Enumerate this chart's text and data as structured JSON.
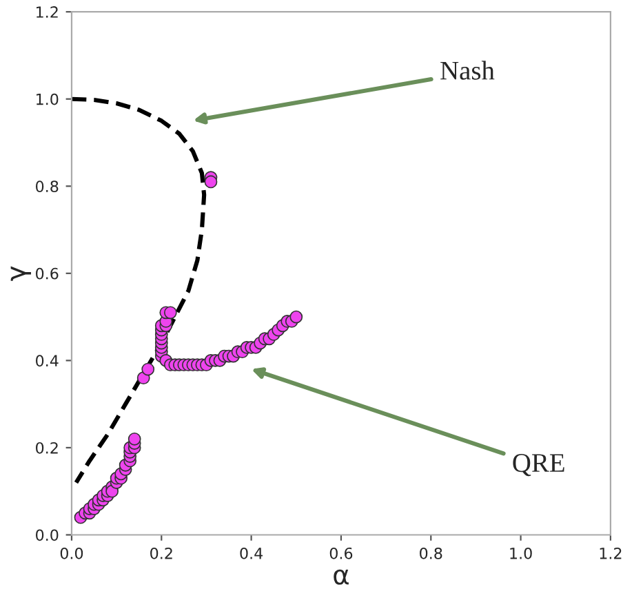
{
  "chart_data": {
    "type": "scatter",
    "xlabel": "α",
    "ylabel": "γ",
    "xlim": [
      0.0,
      1.2
    ],
    "ylim": [
      0.0,
      1.2
    ],
    "xticks": [
      {
        "value": 0.0,
        "label": "0.0"
      },
      {
        "value": 0.2,
        "label": "0.2"
      },
      {
        "value": 0.4,
        "label": "0.4"
      },
      {
        "value": 0.6,
        "label": "0.6"
      },
      {
        "value": 0.8,
        "label": "0.8"
      },
      {
        "value": 1.0,
        "label": "1.0"
      },
      {
        "value": 1.2,
        "label": "1.2"
      }
    ],
    "yticks": [
      {
        "value": 0.0,
        "label": "0.0"
      },
      {
        "value": 0.2,
        "label": "0.2"
      },
      {
        "value": 0.4,
        "label": "0.4"
      },
      {
        "value": 0.6,
        "label": "0.6"
      },
      {
        "value": 0.8,
        "label": "0.8"
      },
      {
        "value": 1.0,
        "label": "1.0"
      },
      {
        "value": 1.2,
        "label": "1.2"
      }
    ],
    "grid": false,
    "legend": false,
    "series": [
      {
        "type": "line",
        "color": "#000000",
        "line_style": "dashed",
        "marker": "none",
        "x": [
          0.0,
          0.05,
          0.1,
          0.15,
          0.2,
          0.24,
          0.27,
          0.29,
          0.295,
          0.29,
          0.28,
          0.26,
          0.23,
          0.2,
          0.16,
          0.12,
          0.08,
          0.04,
          0.01
        ],
        "values": [
          1.0,
          0.998,
          0.99,
          0.975,
          0.95,
          0.92,
          0.88,
          0.83,
          0.78,
          0.7,
          0.63,
          0.56,
          0.5,
          0.44,
          0.37,
          0.3,
          0.23,
          0.17,
          0.12
        ]
      },
      {
        "color": "#ee44ee",
        "marker": "circle",
        "x": [
          0.02,
          0.03,
          0.04,
          0.04,
          0.05,
          0.05,
          0.06,
          0.06,
          0.07,
          0.07,
          0.08,
          0.08,
          0.09,
          0.09,
          0.1,
          0.1,
          0.11,
          0.11,
          0.12,
          0.12,
          0.13,
          0.13,
          0.13,
          0.13,
          0.14,
          0.14,
          0.14,
          0.16,
          0.17,
          0.2,
          0.2,
          0.2,
          0.2,
          0.2,
          0.2,
          0.2,
          0.2,
          0.21,
          0.21,
          0.21,
          0.22,
          0.21,
          0.22,
          0.23,
          0.24,
          0.25,
          0.26,
          0.27,
          0.28,
          0.29,
          0.3,
          0.31,
          0.32,
          0.33,
          0.34,
          0.35,
          0.36,
          0.37,
          0.38,
          0.39,
          0.4,
          0.41,
          0.42,
          0.43,
          0.44,
          0.45,
          0.46,
          0.47,
          0.48,
          0.49,
          0.5,
          0.31,
          0.31
        ],
        "values": [
          0.04,
          0.05,
          0.05,
          0.06,
          0.06,
          0.07,
          0.07,
          0.08,
          0.08,
          0.09,
          0.09,
          0.1,
          0.11,
          0.1,
          0.12,
          0.13,
          0.13,
          0.14,
          0.15,
          0.16,
          0.17,
          0.18,
          0.19,
          0.2,
          0.2,
          0.21,
          0.22,
          0.36,
          0.38,
          0.41,
          0.42,
          0.43,
          0.44,
          0.45,
          0.46,
          0.47,
          0.48,
          0.48,
          0.49,
          0.51,
          0.51,
          0.4,
          0.39,
          0.39,
          0.39,
          0.39,
          0.39,
          0.39,
          0.39,
          0.39,
          0.39,
          0.4,
          0.4,
          0.4,
          0.41,
          0.41,
          0.41,
          0.42,
          0.42,
          0.43,
          0.43,
          0.43,
          0.44,
          0.45,
          0.45,
          0.46,
          0.47,
          0.48,
          0.49,
          0.49,
          0.5,
          0.82,
          0.81
        ]
      }
    ],
    "annotations": [
      "Nash",
      "QRE"
    ]
  }
}
